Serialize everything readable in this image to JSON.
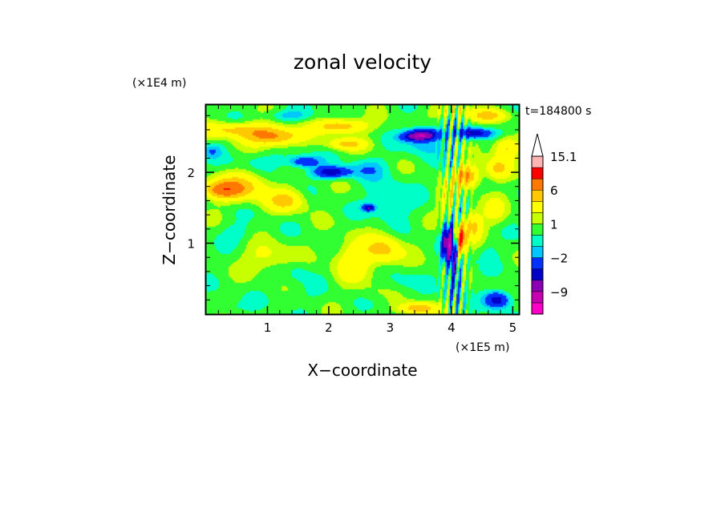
{
  "chart_data": {
    "type": "heatmap",
    "title": "zonal velocity",
    "xlabel": "X−coordinate",
    "ylabel": "Z−coordinate",
    "x_unit": "(×1E5 m)",
    "y_unit": "(×1E4 m)",
    "time_label": "t=184800 s",
    "xlim": [
      0.0,
      5.1
    ],
    "ylim": [
      0.0,
      2.95
    ],
    "x_ticks": [
      {
        "value": 1,
        "label": "1"
      },
      {
        "value": 2,
        "label": "2"
      },
      {
        "value": 3,
        "label": "3"
      },
      {
        "value": 4,
        "label": "4"
      },
      {
        "value": 5,
        "label": "5"
      }
    ],
    "y_ticks": [
      {
        "value": 1,
        "label": "1"
      },
      {
        "value": 2,
        "label": "2"
      }
    ],
    "x_minor_step": 0.2,
    "y_minor_step": 0.2,
    "colorbar": {
      "levels": [
        -15.1,
        -12,
        -9,
        -6,
        -4,
        -2,
        -1,
        0,
        1,
        2,
        4,
        6,
        9,
        12,
        15.1
      ],
      "colors": [
        "#ff00c8",
        "#c800b4",
        "#8c00b4",
        "#0000c8",
        "#0032ff",
        "#00c8ff",
        "#00ffc8",
        "#32ff32",
        "#c8ff00",
        "#ffff00",
        "#ffc800",
        "#ff7800",
        "#ff0000",
        "#ffb4b4"
      ],
      "tick_labels": [
        {
          "level": 15.1,
          "label": "15.1"
        },
        {
          "level": 6,
          "label": "6"
        },
        {
          "level": 1,
          "label": "1"
        },
        {
          "level": -2,
          "label": "−2"
        },
        {
          "level": -9,
          "label": "−9"
        }
      ],
      "extend": "max"
    },
    "background_value": 0.5,
    "features": [
      {
        "x": 0.5,
        "z": 2.6,
        "sx": 0.6,
        "sz": 0.1,
        "value": 4
      },
      {
        "x": 1.1,
        "z": 2.5,
        "sx": 0.45,
        "sz": 0.12,
        "value": 6
      },
      {
        "x": 2.2,
        "z": 2.65,
        "sx": 0.4,
        "sz": 0.1,
        "value": 5
      },
      {
        "x": 2.3,
        "z": 2.4,
        "sx": 0.3,
        "sz": 0.08,
        "value": 4
      },
      {
        "x": 0.25,
        "z": 1.75,
        "sx": 0.3,
        "sz": 0.12,
        "value": 6
      },
      {
        "x": 0.6,
        "z": 1.8,
        "sx": 0.4,
        "sz": 0.2,
        "value": 4
      },
      {
        "x": 1.3,
        "z": 1.6,
        "sx": 0.3,
        "sz": 0.15,
        "value": 4
      },
      {
        "x": 1.6,
        "z": 2.15,
        "sx": 0.25,
        "sz": 0.08,
        "value": -4
      },
      {
        "x": 2.05,
        "z": 2.0,
        "sx": 0.3,
        "sz": 0.08,
        "value": -6
      },
      {
        "x": 1.0,
        "z": 2.15,
        "sx": 0.6,
        "sz": 0.12,
        "value": -1
      },
      {
        "x": 0.1,
        "z": 2.3,
        "sx": 0.15,
        "sz": 0.1,
        "value": -2
      },
      {
        "x": 1.35,
        "z": 2.8,
        "sx": 0.35,
        "sz": 0.08,
        "value": -2
      },
      {
        "x": 2.65,
        "z": 2.05,
        "sx": 0.3,
        "sz": 0.15,
        "value": -2
      },
      {
        "x": 3.0,
        "z": 1.6,
        "sx": 0.35,
        "sz": 0.25,
        "value": -2
      },
      {
        "x": 2.65,
        "z": 1.5,
        "sx": 0.1,
        "sz": 0.05,
        "value": -6
      },
      {
        "x": 3.55,
        "z": 2.4,
        "sx": 0.35,
        "sz": 0.15,
        "value": -2
      },
      {
        "x": 3.45,
        "z": 2.5,
        "sx": 0.25,
        "sz": 0.06,
        "value": -6
      },
      {
        "x": 3.55,
        "z": 2.55,
        "sx": 0.25,
        "sz": 0.08,
        "value": -6
      },
      {
        "x": 4.35,
        "z": 2.55,
        "sx": 0.3,
        "sz": 0.07,
        "value": -6
      },
      {
        "x": 4.0,
        "z": 2.85,
        "sx": 0.35,
        "sz": 0.1,
        "value": 2
      },
      {
        "x": 4.6,
        "z": 2.8,
        "sx": 0.3,
        "sz": 0.08,
        "value": 4
      },
      {
        "x": 4.25,
        "z": 1.95,
        "sx": 0.2,
        "sz": 0.15,
        "value": 6
      },
      {
        "x": 4.75,
        "z": 2.05,
        "sx": 0.2,
        "sz": 0.15,
        "value": 4
      },
      {
        "x": 4.9,
        "z": 2.35,
        "sx": 0.2,
        "sz": 0.15,
        "value": 4
      },
      {
        "x": 3.95,
        "z": 1.6,
        "sx": 0.18,
        "sz": 0.25,
        "value": 2
      },
      {
        "x": 3.95,
        "z": 1.0,
        "sx": 0.1,
        "sz": 0.25,
        "value": -9
      },
      {
        "x": 4.15,
        "z": 1.05,
        "sx": 0.08,
        "sz": 0.2,
        "value": 9
      },
      {
        "x": 4.05,
        "z": 0.6,
        "sx": 0.1,
        "sz": 0.4,
        "value": -4
      },
      {
        "x": 4.35,
        "z": 1.25,
        "sx": 0.15,
        "sz": 0.2,
        "value": 4
      },
      {
        "x": 4.7,
        "z": 1.45,
        "sx": 0.2,
        "sz": 0.2,
        "value": 2
      },
      {
        "x": 4.6,
        "z": 0.85,
        "sx": 0.15,
        "sz": 0.2,
        "value": -1
      },
      {
        "x": 4.75,
        "z": 0.2,
        "sx": 0.2,
        "sz": 0.12,
        "value": -6
      },
      {
        "x": 3.45,
        "z": 0.08,
        "sx": 0.3,
        "sz": 0.08,
        "value": 5
      },
      {
        "x": 1.4,
        "z": 0.25,
        "sx": 0.5,
        "sz": 0.15,
        "value": -0.5
      },
      {
        "x": 0.3,
        "z": 0.1,
        "sx": 0.3,
        "sz": 0.08,
        "value": -1
      },
      {
        "x": 0.5,
        "z": 1.15,
        "sx": 0.3,
        "sz": 0.15,
        "value": -1
      },
      {
        "x": 1.5,
        "z": 0.6,
        "sx": 0.2,
        "sz": 0.15,
        "value": -1
      },
      {
        "x": 1.0,
        "z": 0.8,
        "sx": 0.4,
        "sz": 0.2,
        "value": 2
      },
      {
        "x": 2.4,
        "z": 0.75,
        "sx": 0.3,
        "sz": 0.3,
        "value": 3
      },
      {
        "x": 2.9,
        "z": 0.9,
        "sx": 0.3,
        "sz": 0.2,
        "value": 4
      },
      {
        "x": 3.2,
        "z": 0.45,
        "sx": 0.25,
        "sz": 0.15,
        "value": -1
      },
      {
        "x": 2.7,
        "z": 0.3,
        "sx": 0.2,
        "sz": 0.12,
        "value": 0.5
      }
    ]
  }
}
